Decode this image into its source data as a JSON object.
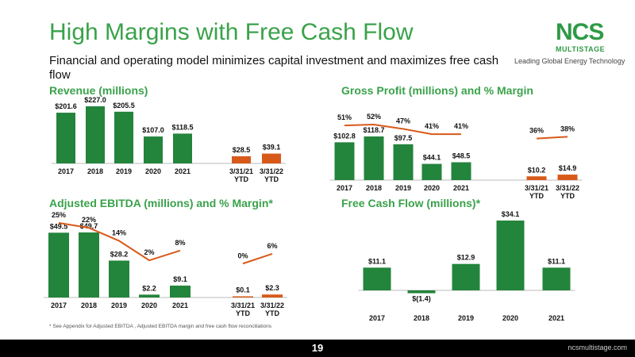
{
  "header": {
    "title": "High Margins with Free Cash Flow",
    "subtitle": "Financial and operating model minimizes capital investment and maximizes free cash flow"
  },
  "logo": {
    "name": "NCS",
    "sub": "MULTISTAGE",
    "tagline": "Leading Global Energy Technology"
  },
  "colors": {
    "green": "#23843c",
    "orange": "#d85a1a",
    "title_green": "#3aa24a"
  },
  "chart_data": [
    {
      "id": "revenue",
      "type": "bar",
      "title": "Revenue (millions)",
      "categories": [
        "2017",
        "2018",
        "2019",
        "2020",
        "2021",
        "3/31/21 YTD",
        "3/31/22 YTD"
      ],
      "values": [
        201.6,
        227.0,
        205.5,
        107.0,
        118.5,
        28.5,
        39.1
      ],
      "value_labels": [
        "$201.6",
        "$227.0",
        "$205.5",
        "$107.0",
        "$118.5",
        "$28.5",
        "$39.1"
      ],
      "ylim": [
        0,
        227
      ]
    },
    {
      "id": "gross-profit",
      "type": "bar+line",
      "title": "Gross Profit (millions) and % Margin",
      "categories": [
        "2017",
        "2018",
        "2019",
        "2020",
        "2021",
        "3/31/21 YTD",
        "3/31/22 YTD"
      ],
      "values": [
        102.8,
        118.7,
        97.5,
        44.1,
        48.5,
        10.2,
        14.9
      ],
      "value_labels": [
        "$102.8",
        "$118.7",
        "$97.5",
        "$44.1",
        "$48.5",
        "$10.2",
        "$14.9"
      ],
      "margin": [
        51,
        52,
        47,
        41,
        41,
        36,
        38
      ],
      "margin_labels": [
        "51%",
        "52%",
        "47%",
        "41%",
        "41%",
        "36%",
        "38%"
      ],
      "ylim": [
        0,
        118.7
      ]
    },
    {
      "id": "ebitda",
      "type": "bar+line",
      "title": "Adjusted EBITDA (millions) and % Margin*",
      "categories": [
        "2017",
        "2018",
        "2019",
        "2020",
        "2021",
        "3/31/21 YTD",
        "3/31/22 YTD"
      ],
      "values": [
        49.5,
        49.7,
        28.2,
        2.2,
        9.1,
        0.1,
        2.3
      ],
      "value_labels": [
        "$49.5",
        "$49.7",
        "$28.2",
        "$2.2",
        "$9.1",
        "$0.1",
        "$2.3"
      ],
      "margin": [
        25,
        22,
        14,
        2,
        8,
        0,
        6
      ],
      "margin_labels": [
        "25%",
        "22%",
        "14%",
        "2%",
        "8%",
        "0%",
        "6%"
      ],
      "ylim": [
        0,
        49.7
      ]
    },
    {
      "id": "fcf",
      "type": "bar",
      "title": "Free Cash Flow (millions)*",
      "categories": [
        "2017",
        "2018",
        "2019",
        "2020",
        "2021"
      ],
      "values": [
        11.1,
        -1.4,
        12.9,
        34.1,
        11.1
      ],
      "value_labels": [
        "$11.1",
        "$(1.4)",
        "$12.9",
        "$34.1",
        "$11.1"
      ],
      "ylim": [
        -1.4,
        34.1
      ]
    }
  ],
  "footnote": "*   See Appendix for Adjusted EBITDA , Adjusted EBITDA margin and free cash flow reconciliations",
  "footer": {
    "page": "19",
    "url": "ncsmultistage.com"
  }
}
